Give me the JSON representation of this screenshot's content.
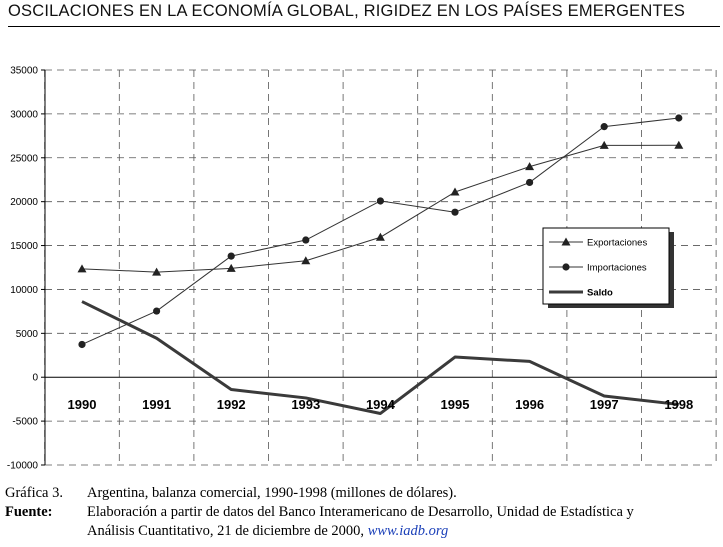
{
  "header": {
    "title": "OSCILACIONES EN LA ECONOMÍA GLOBAL, RIGIDEZ EN LOS PAÍSES EMERGENTES"
  },
  "chart_data": {
    "type": "line",
    "categories": [
      "1990",
      "1991",
      "1992",
      "1993",
      "1994",
      "1995",
      "1996",
      "1997",
      "1998"
    ],
    "series": [
      {
        "name": "Exportaciones",
        "marker": "triangle",
        "color": "#333333",
        "values": [
          12350,
          11980,
          12400,
          13270,
          15950,
          21100,
          23990,
          26410,
          26430
        ]
      },
      {
        "name": "Importaciones",
        "marker": "circle",
        "color": "#333333",
        "values": [
          3730,
          7540,
          13800,
          15630,
          20080,
          18800,
          22190,
          28550,
          29530
        ]
      },
      {
        "name": "Saldo",
        "marker": "none",
        "color": "#3a3a3a",
        "values": [
          8620,
          4440,
          -1400,
          -2360,
          -4130,
          2300,
          1800,
          -2140,
          -3100
        ]
      }
    ],
    "yticks": [
      "35000",
      "30000",
      "25000",
      "20000",
      "15000",
      "10000",
      "5000",
      "0",
      "-5000",
      "-10000"
    ],
    "ylim": [
      -10000,
      35000
    ],
    "grid": true,
    "legend": "right"
  },
  "caption": {
    "figure_label": "Gráfica 3.",
    "figure_text": "Argentina, balanza comercial, 1990-1998 (millones de dólares).",
    "source_label": "Fuente:",
    "source_text": "Elaboración a partir de datos del Banco Interamericano de Desarrollo, Unidad de Estadística y",
    "source_text_2": "Análisis Cuantitativo, 21 de diciembre de 2000,",
    "source_link": "www.iadb.org"
  }
}
